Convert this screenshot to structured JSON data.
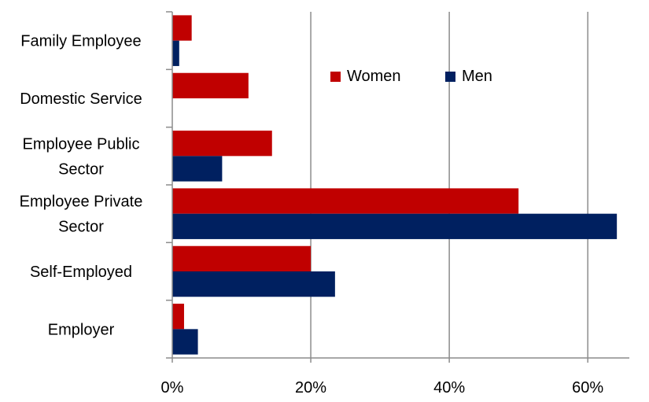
{
  "chart_data": {
    "type": "bar",
    "orientation": "horizontal",
    "categories": [
      [
        "Family Employee"
      ],
      [
        "Domestic Service"
      ],
      [
        "Employee Public",
        "Sector"
      ],
      [
        "Employee Private",
        "Sector"
      ],
      [
        "Self-Employed"
      ],
      [
        "Employer"
      ]
    ],
    "series": [
      {
        "name": "Women",
        "color": "#C00000",
        "values": [
          2.8,
          11.0,
          14.4,
          50.0,
          20.0,
          1.7
        ]
      },
      {
        "name": "Men",
        "color": "#002060",
        "values": [
          1.0,
          0.0,
          7.2,
          64.2,
          23.5,
          3.7
        ]
      }
    ],
    "xlim": [
      0,
      66
    ],
    "xticks": [
      0,
      20,
      40,
      60
    ],
    "tick_labels": [
      "0%",
      "20%",
      "40%",
      "60%"
    ],
    "grid": "vertical",
    "legend_position": "top-right",
    "title": "",
    "xlabel": "",
    "ylabel": ""
  }
}
